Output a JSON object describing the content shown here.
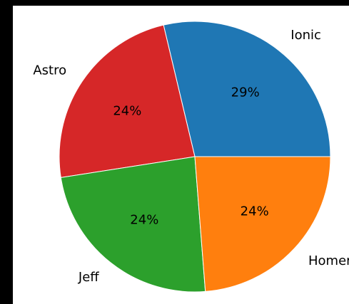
{
  "chart_data": {
    "type": "pie",
    "title": "",
    "categories": [
      "Ionic",
      "Astro",
      "Jeff",
      "Homer"
    ],
    "values": [
      29,
      24,
      24,
      24
    ],
    "percent_labels": [
      "29%",
      "24%",
      "24%",
      "24%"
    ],
    "colors": [
      "#1f77b4",
      "#d62728",
      "#2ca02c",
      "#ff7f0e"
    ],
    "start_angle_deg": 0,
    "direction": "counterclockwise",
    "legend": "none"
  }
}
